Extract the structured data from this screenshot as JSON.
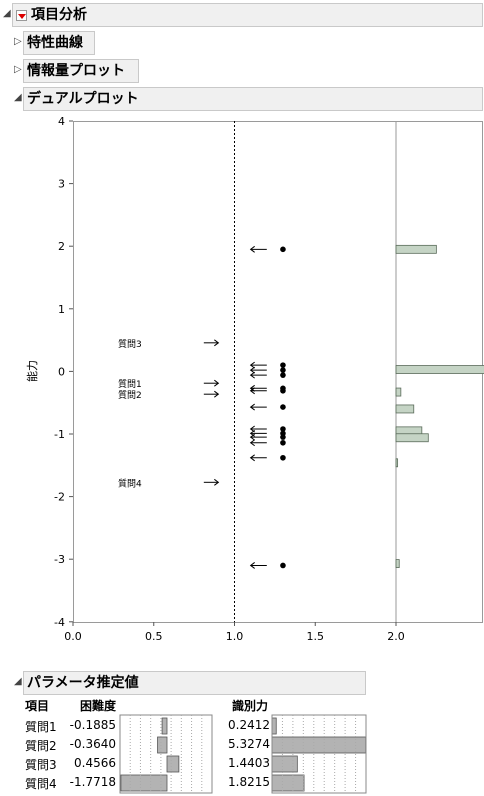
{
  "outline": {
    "item_analysis": "項目分析",
    "characteristic_curve": "特性曲線",
    "information_plot": "情報量プロット",
    "dual_plot": "デュアルプロット",
    "param_estimates": "パラメータ推定値"
  },
  "dual_plot": {
    "y_axis_label": "能力",
    "x_ticks": [
      "0.0",
      "0.5",
      "1.0",
      "1.5",
      "2.0"
    ],
    "y_ticks": [
      "4",
      "3",
      "2",
      "1",
      "0",
      "-1",
      "-2",
      "-3",
      "-4"
    ],
    "item_labels": [
      {
        "label": "質問3",
        "ability": 0.4566
      },
      {
        "label": "質問1",
        "ability": -0.1885
      },
      {
        "label": "質問2",
        "ability": -0.364
      },
      {
        "label": "質問4",
        "ability": -1.7718
      }
    ],
    "person_abilities": [
      1.95,
      0.1,
      0.02,
      -0.06,
      -0.27,
      -0.31,
      -0.57,
      -0.92,
      -0.99,
      -1.05,
      -1.14,
      -1.38,
      -3.1
    ],
    "histogram": [
      {
        "ability": 1.95,
        "count": 0.25
      },
      {
        "ability": 0.03,
        "count": 0.78
      },
      {
        "ability": -0.33,
        "count": 0.03
      },
      {
        "ability": -0.6,
        "count": 0.11
      },
      {
        "ability": -0.95,
        "count": 0.16
      },
      {
        "ability": -1.06,
        "count": 0.2
      },
      {
        "ability": -1.46,
        "count": 0.01
      },
      {
        "ability": -3.07,
        "count": 0.02
      }
    ]
  },
  "params": {
    "headers": {
      "item": "項目",
      "difficulty": "困難度",
      "discrimination": "識別力"
    },
    "rows": [
      {
        "item": "質問1",
        "difficulty": "-0.1885",
        "discrimination": "0.2412",
        "d": -0.1885,
        "a": 0.2412
      },
      {
        "item": "質問2",
        "difficulty": "-0.3640",
        "discrimination": "5.3274",
        "d": -0.364,
        "a": 5.3274
      },
      {
        "item": "質問3",
        "difficulty": "0.4566",
        "discrimination": "1.4403",
        "d": 0.4566,
        "a": 1.4403
      },
      {
        "item": "質問4",
        "difficulty": "-1.7718",
        "discrimination": "1.8215",
        "d": -1.7718,
        "a": 1.8215
      }
    ]
  }
}
